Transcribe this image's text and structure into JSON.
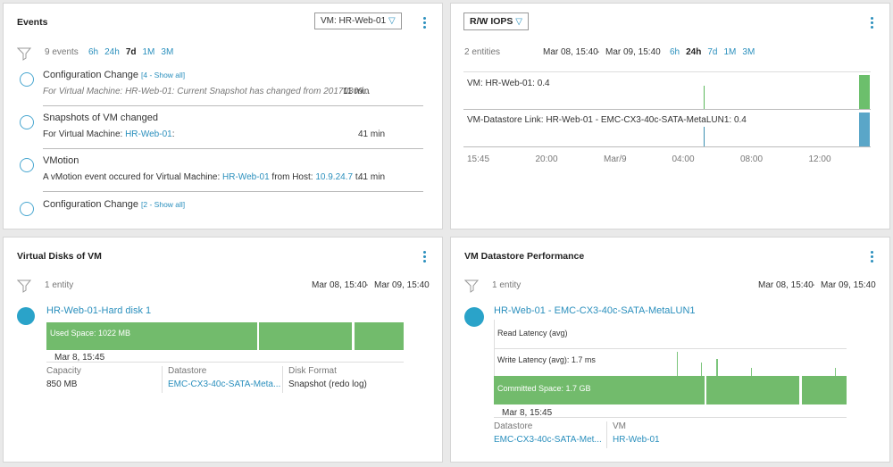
{
  "events": {
    "title": "Events",
    "selector": "VM: HR-Web-01",
    "count": "9 events",
    "ranges": [
      "6h",
      "24h",
      "7d",
      "1M",
      "3M"
    ],
    "active_range": 2,
    "items": [
      {
        "title": "Configuration Change",
        "badge": "[4 - Show all]",
        "desc": [
          {
            "text": "For Virtual Machine: HR-Web-01: Current Snapshot has changed from 20170309..."
          }
        ],
        "italic": true,
        "time": "11 min"
      },
      {
        "title": "Snapshots of VM changed",
        "desc": [
          {
            "text": "For Virtual Machine: "
          },
          {
            "text": "HR-Web-01",
            "link": true
          },
          {
            "text": ":"
          }
        ],
        "time": "41 min"
      },
      {
        "title": "VMotion",
        "desc": [
          {
            "text": "A vMotion event occured for Virtual Machine: "
          },
          {
            "text": "HR-Web-01",
            "link": true
          },
          {
            "text": " from Host: "
          },
          {
            "text": "10.9.24.7",
            "link": true
          },
          {
            "text": " t..."
          }
        ],
        "time": "41 min"
      },
      {
        "title": "Configuration Change",
        "badge": "[2 - Show all]"
      }
    ]
  },
  "iops": {
    "title": "R/W IOPS",
    "count": "2 entities",
    "from": "Mar 08, 15:40",
    "sep": "-",
    "to": "Mar 09, 15:40",
    "ranges": [
      "6h",
      "24h",
      "7d",
      "1M",
      "3M"
    ],
    "active_range": 1,
    "rows": [
      "VM: HR-Web-01: 0.4",
      "VM-Datastore Link: HR-Web-01 - EMC-CX3-40c-SATA-MetaLUN1: 0.4"
    ],
    "axis": [
      "15:45",
      "20:00",
      "Mar/9",
      "04:00",
      "08:00",
      "12:00"
    ]
  },
  "disks": {
    "title": "Virtual Disks of VM",
    "count": "1 entity",
    "from": "Mar 08, 15:40",
    "sep": "-",
    "to": "Mar 09, 15:40",
    "name": "HR-Web-01-Hard disk 1",
    "bar": "Used Space: 1022 MB",
    "start": "Mar 8, 15:45",
    "fields": [
      {
        "label": "Capacity",
        "value": "850 MB"
      },
      {
        "label": "Datastore",
        "value": "EMC-CX3-40c-SATA-Meta...",
        "link": true
      },
      {
        "label": "Disk Format",
        "value": "Snapshot (redo log)"
      }
    ]
  },
  "perf": {
    "title": "VM Datastore Performance",
    "count": "1 entity",
    "from": "Mar 08, 15:40",
    "sep": "-",
    "to": "Mar 09, 15:40",
    "name": "HR-Web-01 - EMC-CX3-40c-SATA-MetaLUN1",
    "metrics": [
      "Read Latency (avg)",
      "Write Latency (avg): 1.7 ms",
      "Committed Space: 1.7 GB"
    ],
    "start": "Mar 8, 15:45",
    "fields": [
      {
        "label": "Datastore",
        "value": "EMC-CX3-40c-SATA-Met...",
        "link": true
      },
      {
        "label": "VM",
        "value": "HR-Web-01",
        "link": true
      }
    ]
  }
}
